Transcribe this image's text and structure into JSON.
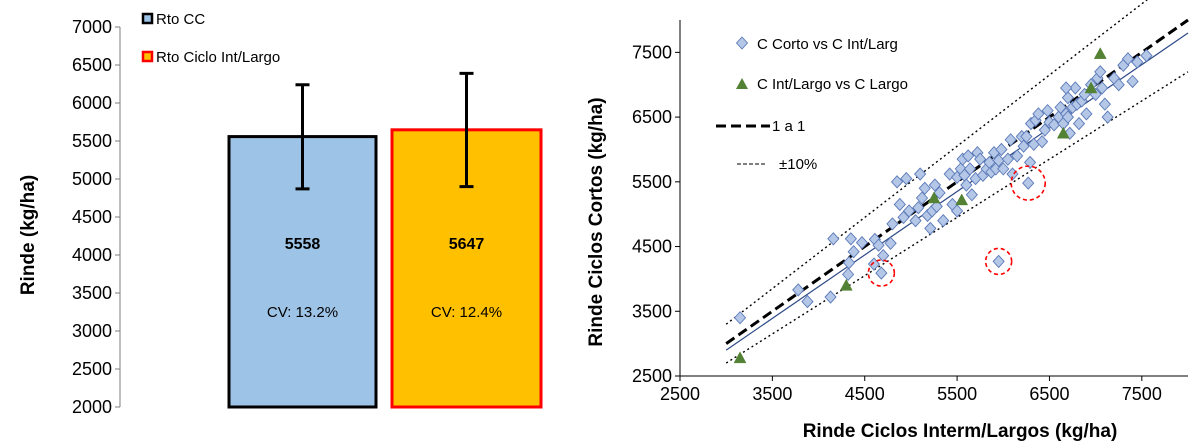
{
  "chart_data": [
    {
      "type": "bar",
      "ylabel": "Rinde (kg/ha)",
      "ylim": [
        2000,
        7000
      ],
      "yticks": [
        2000,
        2500,
        3000,
        3500,
        4000,
        4500,
        5000,
        5500,
        6000,
        6500,
        7000
      ],
      "categories": [
        "Rto CC",
        "Rto Ciclo Int/Largo"
      ],
      "values": [
        5558,
        5647
      ],
      "value_labels": [
        "5558",
        "5647"
      ],
      "cv_labels": [
        "CV: 13.2%",
        "CV: 12.4%"
      ],
      "error_bars": [
        {
          "low": 4870,
          "high": 6240
        },
        {
          "low": 4900,
          "high": 6390
        }
      ],
      "legend": {
        "placement": "top-left",
        "entries": [
          "Rto CC",
          "Rto Ciclo Int/Largo"
        ]
      },
      "colors": {
        "fills": [
          "#9dc3e6",
          "#ffc000"
        ],
        "edges": [
          "#000000",
          "#ff0000"
        ],
        "error_bar": "#000000"
      },
      "grid": false
    },
    {
      "type": "scatter",
      "xlabel": "Rinde Ciclos Interm/Largos (kg/ha)",
      "ylabel": "Rinde Ciclos Cortos (kg/ha)",
      "xlim": [
        2500,
        8000
      ],
      "ylim": [
        2500,
        8000
      ],
      "xticks": [
        2500,
        3500,
        4500,
        5500,
        6500,
        7500
      ],
      "yticks": [
        2500,
        3500,
        4500,
        5500,
        6500,
        7500
      ],
      "grid": false,
      "legend": {
        "placement": "top-left",
        "entries": [
          "C Corto vs C Int/Larg",
          "C Int/Largo vs C Largo",
          "1 a 1",
          "±10%"
        ]
      },
      "colors": {
        "diamond_fill": "#b4c7e7",
        "diamond_edge": "#5b79b8",
        "triangle_fill": "#548235",
        "circle": "#ff0000",
        "one_to_one": "#000000",
        "ten_pct": "#000000",
        "fit": "#2e4a86"
      },
      "series": [
        {
          "name": "C Corto vs C Int/Larg",
          "marker": "diamond",
          "points": [
            [
              3150,
              3400
            ],
            [
              3780,
              3830
            ],
            [
              3880,
              3650
            ],
            [
              4130,
              3720
            ],
            [
              4320,
              4070
            ],
            [
              4330,
              4250
            ],
            [
              4160,
              4620
            ],
            [
              4350,
              4620
            ],
            [
              4380,
              4420
            ],
            [
              4470,
              4560
            ],
            [
              4600,
              4230
            ],
            [
              4610,
              4610
            ],
            [
              4650,
              4520
            ],
            [
              4680,
              4090
            ],
            [
              4700,
              4360
            ],
            [
              4780,
              4550
            ],
            [
              4800,
              4850
            ],
            [
              4850,
              5500
            ],
            [
              4880,
              5150
            ],
            [
              4920,
              4950
            ],
            [
              4950,
              5550
            ],
            [
              4980,
              5050
            ],
            [
              5050,
              4900
            ],
            [
              5080,
              5100
            ],
            [
              5100,
              5620
            ],
            [
              5120,
              5250
            ],
            [
              5150,
              5400
            ],
            [
              5180,
              4980
            ],
            [
              5210,
              4780
            ],
            [
              5230,
              5050
            ],
            [
              5260,
              5450
            ],
            [
              5280,
              5120
            ],
            [
              5310,
              5330
            ],
            [
              5350,
              4900
            ],
            [
              5420,
              5620
            ],
            [
              5450,
              5150
            ],
            [
              5500,
              5570
            ],
            [
              5500,
              5050
            ],
            [
              5540,
              5700
            ],
            [
              5560,
              5850
            ],
            [
              5580,
              5600
            ],
            [
              5600,
              5450
            ],
            [
              5620,
              5900
            ],
            [
              5640,
              5700
            ],
            [
              5660,
              5300
            ],
            [
              5700,
              5550
            ],
            [
              5720,
              5950
            ],
            [
              5750,
              5850
            ],
            [
              5780,
              5600
            ],
            [
              5820,
              5700
            ],
            [
              5850,
              5800
            ],
            [
              5870,
              5650
            ],
            [
              5900,
              5950
            ],
            [
              5920,
              5700
            ],
            [
              5950,
              5830
            ],
            [
              5980,
              6000
            ],
            [
              6000,
              5700
            ],
            [
              6050,
              5850
            ],
            [
              6080,
              6150
            ],
            [
              6100,
              5620
            ],
            [
              6150,
              5900
            ],
            [
              6200,
              6200
            ],
            [
              6220,
              6050
            ],
            [
              6250,
              6200
            ],
            [
              6270,
              5480
            ],
            [
              6290,
              5800
            ],
            [
              6300,
              6400
            ],
            [
              6330,
              6080
            ],
            [
              6350,
              6450
            ],
            [
              6380,
              6550
            ],
            [
              6420,
              6120
            ],
            [
              6450,
              6300
            ],
            [
              6480,
              6600
            ],
            [
              6500,
              6420
            ],
            [
              6550,
              6380
            ],
            [
              6600,
              6500
            ],
            [
              6620,
              6650
            ],
            [
              6650,
              6400
            ],
            [
              6680,
              6550
            ],
            [
              6700,
              6800
            ],
            [
              6720,
              6250
            ],
            [
              6750,
              6650
            ],
            [
              6780,
              6950
            ],
            [
              6800,
              6700
            ],
            [
              6820,
              6400
            ],
            [
              6850,
              6750
            ],
            [
              6880,
              6850
            ],
            [
              6900,
              6550
            ],
            [
              6950,
              7000
            ],
            [
              7000,
              6850
            ],
            [
              7020,
              7100
            ],
            [
              7050,
              7200
            ],
            [
              7070,
              6950
            ],
            [
              7100,
              6700
            ],
            [
              7130,
              6500
            ],
            [
              7200,
              7100
            ],
            [
              7250,
              7000
            ],
            [
              7300,
              7300
            ],
            [
              7350,
              7400
            ],
            [
              7400,
              7050
            ],
            [
              7450,
              7350
            ],
            [
              7550,
              7450
            ],
            [
              5950,
              4270
            ],
            [
              6700,
              6500
            ],
            [
              6680,
              6950
            ]
          ]
        },
        {
          "name": "C Int/Largo vs C Largo",
          "marker": "triangle",
          "points": [
            [
              3150,
              2780
            ],
            [
              4300,
              3900
            ],
            [
              5250,
              5250
            ],
            [
              5550,
              5220
            ],
            [
              6650,
              6250
            ],
            [
              6950,
              6950
            ],
            [
              7050,
              7480
            ]
          ]
        }
      ],
      "reference_lines": [
        {
          "name": "1 a 1",
          "style": "dashed",
          "points": [
            [
              3000,
              3000
            ],
            [
              8000,
              8000
            ]
          ]
        },
        {
          "name": "±10%",
          "style": "dotted",
          "points": [
            [
              3000,
              3300
            ],
            [
              7800,
              8580
            ]
          ]
        },
        {
          "name": "±10%",
          "style": "dotted",
          "points": [
            [
              3000,
              2700
            ],
            [
              8000,
              7200
            ]
          ]
        }
      ],
      "fit_line": {
        "points": [
          [
            3000,
            2900
          ],
          [
            8000,
            7800
          ]
        ]
      },
      "highlight_circles": [
        [
          4680,
          4090
        ],
        [
          5950,
          4270
        ],
        [
          6270,
          5480
        ]
      ]
    }
  ]
}
